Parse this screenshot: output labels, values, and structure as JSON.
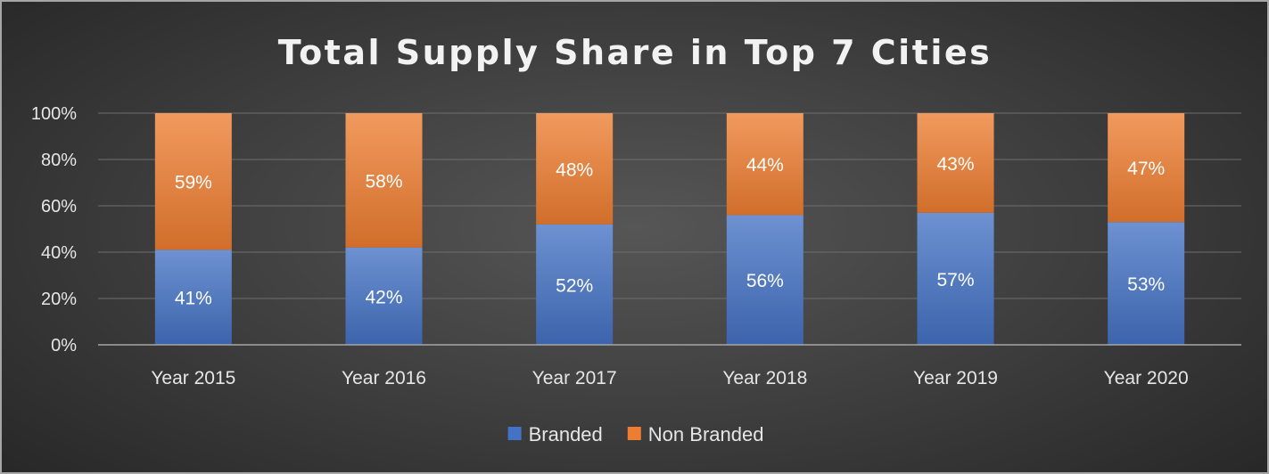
{
  "chart_data": {
    "type": "bar",
    "stacked": true,
    "percent_stacked": true,
    "title": "Total Supply Share in Top 7 Cities",
    "xlabel": "",
    "ylabel": "",
    "categories": [
      "Year 2015",
      "Year 2016",
      "Year 2017",
      "Year 2018",
      "Year 2019",
      "Year 2020"
    ],
    "series": [
      {
        "name": "Branded",
        "values": [
          41,
          42,
          52,
          56,
          57,
          53
        ],
        "labels": [
          "41%",
          "42%",
          "52%",
          "56%",
          "57%",
          "53%"
        ],
        "color": "#4472c4"
      },
      {
        "name": "Non Branded",
        "values": [
          59,
          58,
          48,
          44,
          43,
          47
        ],
        "labels": [
          "59%",
          "58%",
          "48%",
          "44%",
          "43%",
          "47%"
        ],
        "color": "#ed7d31"
      }
    ],
    "ylim": [
      0,
      100
    ],
    "yticks": [
      0,
      20,
      40,
      60,
      80,
      100
    ],
    "ytick_labels": [
      "0%",
      "20%",
      "40%",
      "60%",
      "80%",
      "100%"
    ],
    "grid": true,
    "legend_position": "bottom"
  }
}
